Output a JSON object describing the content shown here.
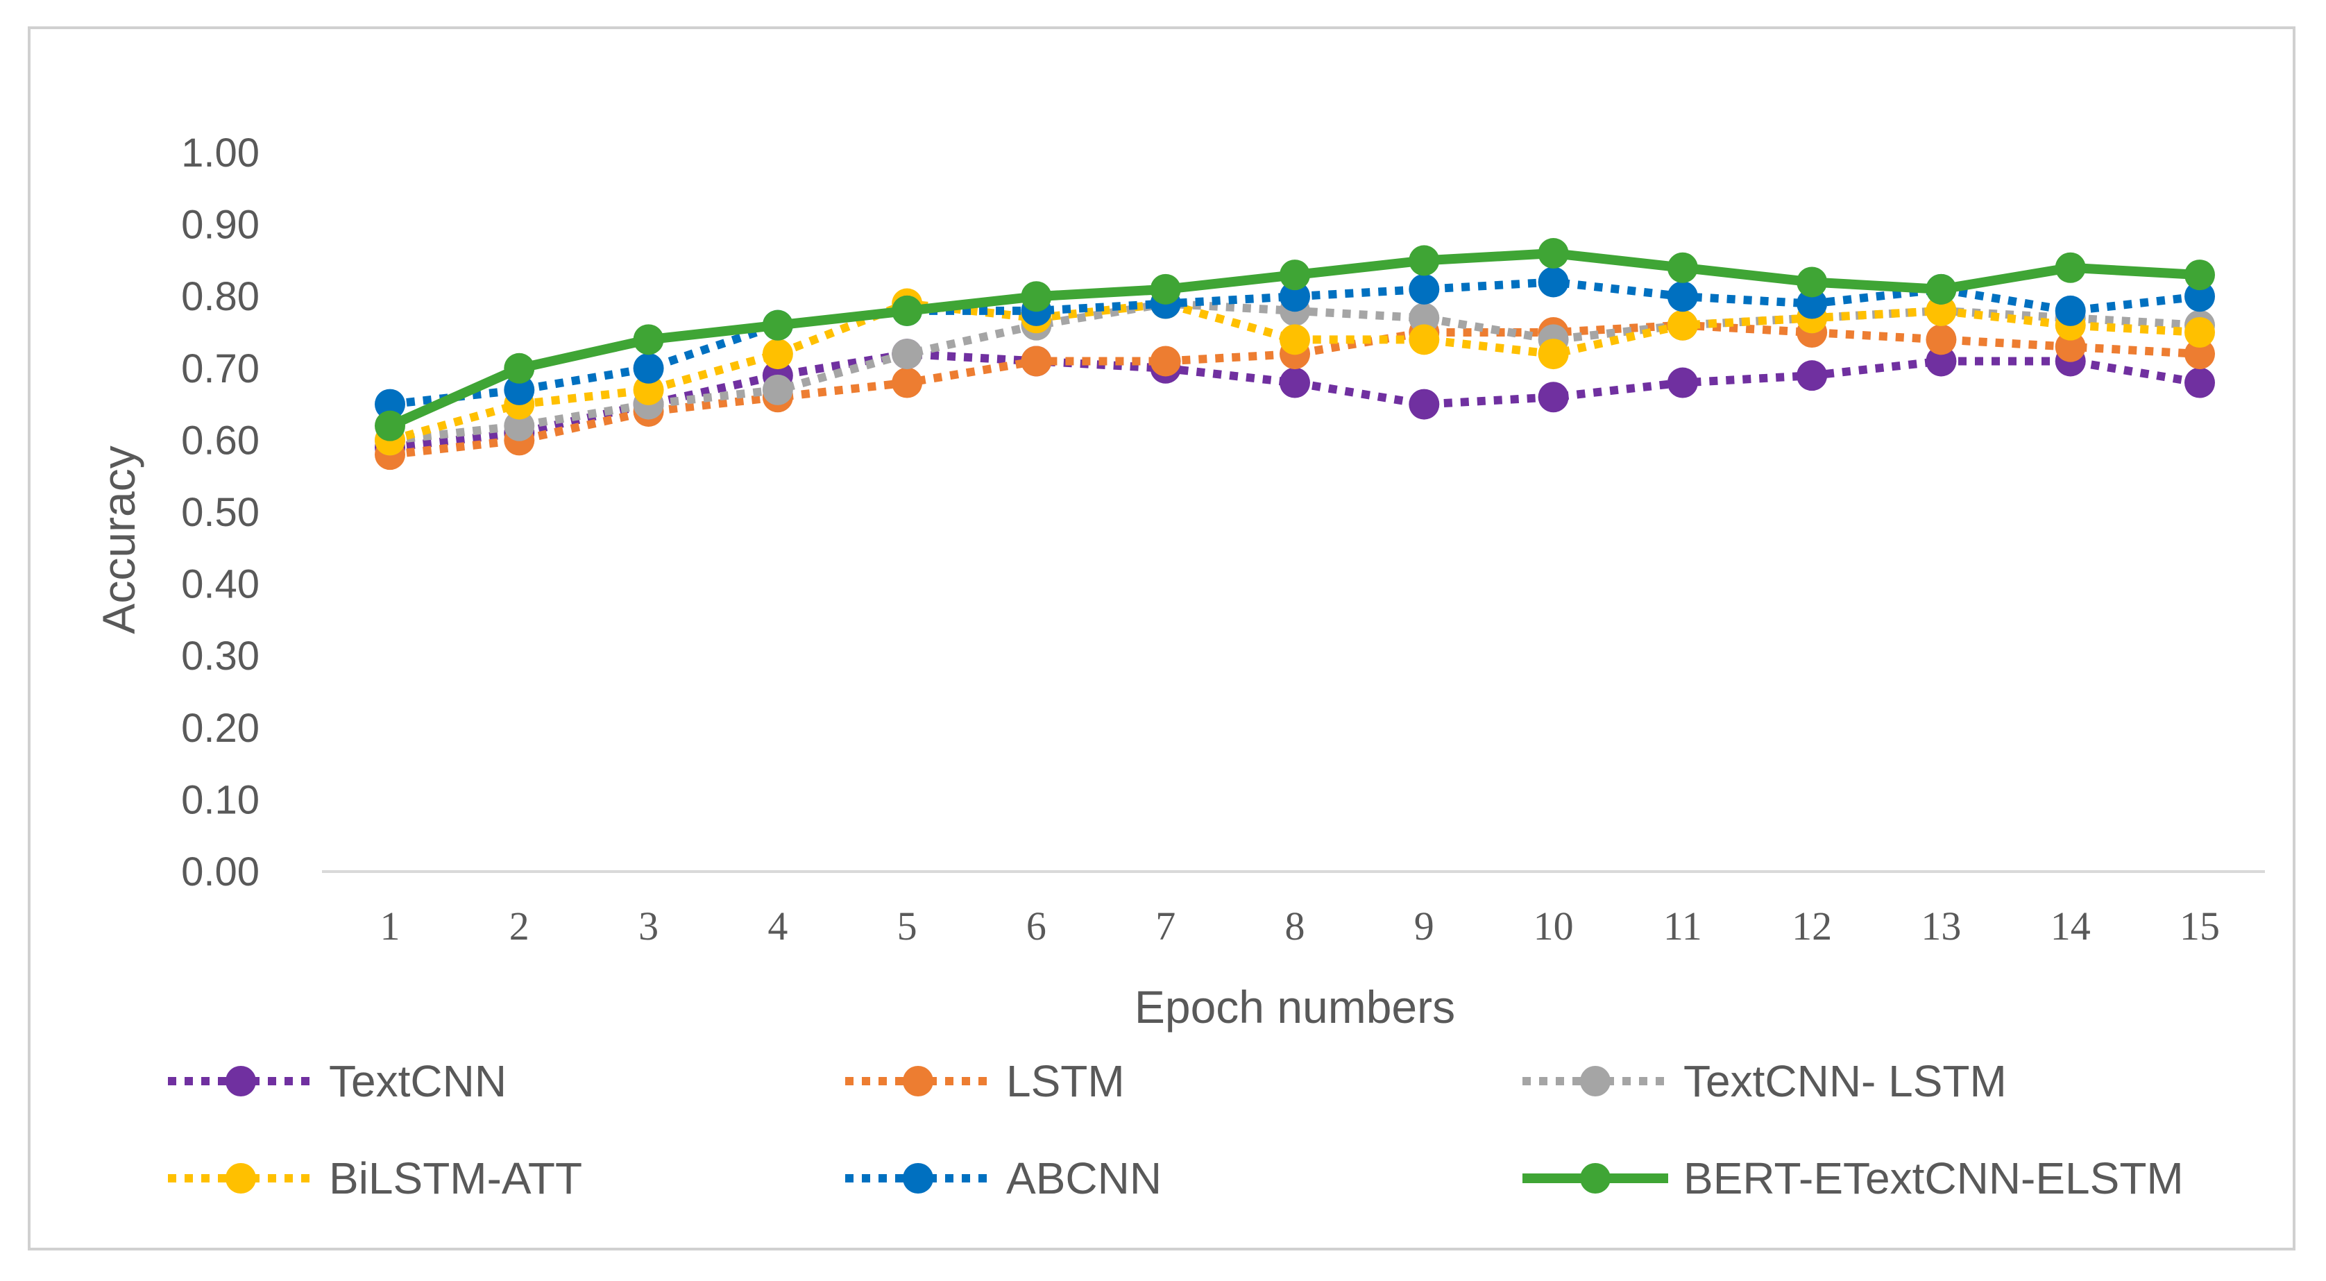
{
  "chart_data": {
    "type": "line",
    "title": "",
    "xlabel": "Epoch numbers",
    "ylabel": "Accuracy",
    "x": [
      1,
      2,
      3,
      4,
      5,
      6,
      7,
      8,
      9,
      10,
      11,
      12,
      13,
      14,
      15
    ],
    "xticks": [
      "1",
      "2",
      "3",
      "4",
      "5",
      "6",
      "7",
      "8",
      "9",
      "10",
      "11",
      "12",
      "13",
      "14",
      "15"
    ],
    "ylim": [
      0,
      1
    ],
    "yticks": [
      "0.00",
      "0.10",
      "0.20",
      "0.30",
      "0.40",
      "0.50",
      "0.60",
      "0.70",
      "0.80",
      "0.90",
      "1.00"
    ],
    "ytick_values": [
      0,
      0.1,
      0.2,
      0.3,
      0.4,
      0.5,
      0.6,
      0.7,
      0.8,
      0.9,
      1.0
    ],
    "grid": false,
    "legend_position": "bottom",
    "series": [
      {
        "name": "TextCNN",
        "color": "#7030a0",
        "style": "dotted",
        "values": [
          0.59,
          0.61,
          0.65,
          0.69,
          0.72,
          0.71,
          0.7,
          0.68,
          0.65,
          0.66,
          0.68,
          0.69,
          0.71,
          0.71,
          0.68
        ]
      },
      {
        "name": "LSTM",
        "color": "#ed7d31",
        "style": "dotted",
        "values": [
          0.58,
          0.6,
          0.64,
          0.66,
          0.68,
          0.71,
          0.71,
          0.72,
          0.75,
          0.75,
          0.76,
          0.75,
          0.74,
          0.73,
          0.72
        ]
      },
      {
        "name": "TextCNN- LSTM",
        "color": "#a5a5a5",
        "style": "dotted",
        "values": [
          0.6,
          0.62,
          0.65,
          0.67,
          0.72,
          0.76,
          0.79,
          0.78,
          0.77,
          0.74,
          0.76,
          0.77,
          0.78,
          0.77,
          0.76
        ]
      },
      {
        "name": "BiLSTM-ATT",
        "color": "#ffc000",
        "style": "dotted",
        "values": [
          0.6,
          0.65,
          0.67,
          0.72,
          0.79,
          0.77,
          0.79,
          0.74,
          0.74,
          0.72,
          0.76,
          0.77,
          0.78,
          0.76,
          0.75
        ]
      },
      {
        "name": "ABCNN",
        "color": "#0070c0",
        "style": "dotted",
        "values": [
          0.65,
          0.67,
          0.7,
          0.76,
          0.78,
          0.78,
          0.79,
          0.8,
          0.81,
          0.82,
          0.8,
          0.79,
          0.81,
          0.78,
          0.8
        ]
      },
      {
        "name": "BERT-ETextCNN-ELSTM",
        "color": "#3fa535",
        "style": "solid",
        "values": [
          0.62,
          0.7,
          0.74,
          0.76,
          0.78,
          0.8,
          0.81,
          0.83,
          0.85,
          0.86,
          0.84,
          0.82,
          0.81,
          0.84,
          0.83
        ]
      }
    ]
  }
}
